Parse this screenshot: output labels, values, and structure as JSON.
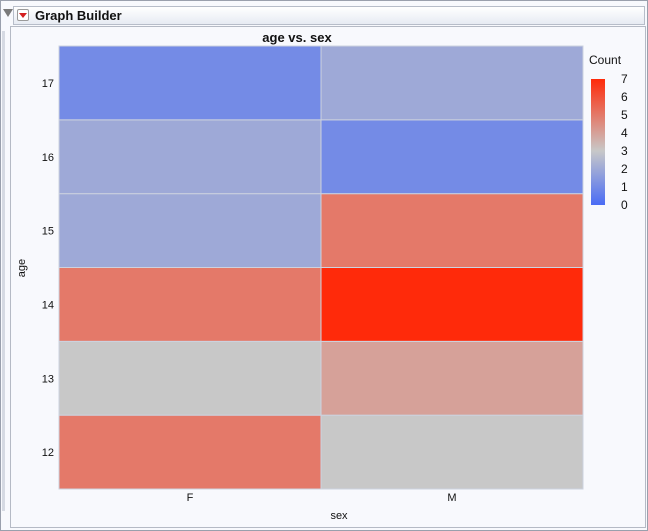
{
  "window": {
    "title": "Graph Builder"
  },
  "colors": {
    "low": "#4a6cf5",
    "mid": "#c8c8c8",
    "high": "#ff2a0a",
    "cell_border": "#cdd2df"
  },
  "chart_data": {
    "type": "heatmap",
    "title": "age vs. sex",
    "xlabel": "sex",
    "ylabel": "age",
    "x_categories": [
      "F",
      "M"
    ],
    "y_categories": [
      "12",
      "13",
      "14",
      "15",
      "16",
      "17"
    ],
    "values": {
      "F": {
        "12": 5,
        "13": 3,
        "14": 5,
        "15": 2,
        "16": 2,
        "17": 1
      },
      "M": {
        "12": 3,
        "13": 4,
        "14": 7,
        "15": 5,
        "16": 1,
        "17": 2
      }
    },
    "legend": {
      "title": "Count",
      "ticks": [
        "0",
        "1",
        "2",
        "3",
        "4",
        "5",
        "6",
        "7"
      ],
      "min": 0,
      "max": 7,
      "placement": "right"
    }
  }
}
